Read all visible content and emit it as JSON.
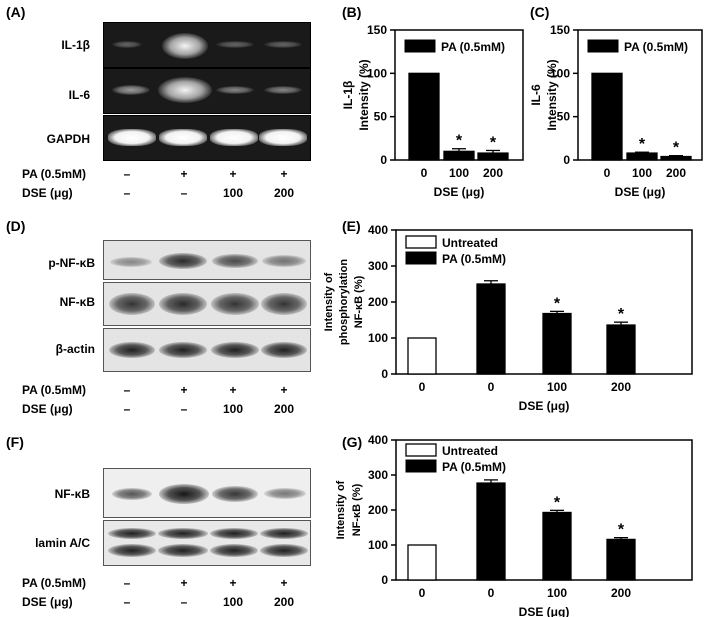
{
  "panels": {
    "A": "(A)",
    "B": "(B)",
    "C": "(C)",
    "D": "(D)",
    "E": "(E)",
    "F": "(F)",
    "G": "(G)"
  },
  "blotA": {
    "rows": [
      "IL-1β",
      "IL-6",
      "GAPDH"
    ]
  },
  "blotD": {
    "rows": [
      "p-NF-κB",
      "NF-κB",
      "β-actin"
    ]
  },
  "blotF": {
    "rows": [
      "NF-κB",
      "lamin A/C"
    ]
  },
  "conditions": {
    "pa_label": "PA (0.5mM)",
    "dse_label": "DSE (μg)",
    "pa": [
      "–",
      "+",
      "+",
      "+"
    ],
    "dse": [
      "–",
      "–",
      "100",
      "200"
    ]
  },
  "colors": {
    "filled": "#000000",
    "open": "#ffffff",
    "band_dark": "#1a1a1a"
  },
  "chart_data": [
    {
      "id": "B",
      "type": "bar",
      "categories": [
        "0",
        "100",
        "200"
      ],
      "series": [
        {
          "name": "PA (0.5mM)",
          "values": [
            100,
            10,
            8
          ],
          "errors": [
            0,
            3,
            3
          ]
        }
      ],
      "significance": [
        "",
        "*",
        "*"
      ],
      "ylabel_lines": [
        "IL-1β",
        "Intensity (%)"
      ],
      "xlabel": "DSE (μg)",
      "ylim": [
        0,
        150
      ],
      "yticks": [
        0,
        50,
        100,
        150
      ],
      "legend": [
        "PA (0.5mM)"
      ],
      "legend_position": "top"
    },
    {
      "id": "C",
      "type": "bar",
      "categories": [
        "0",
        "100",
        "200"
      ],
      "series": [
        {
          "name": "PA (0.5mM)",
          "values": [
            100,
            8,
            4
          ],
          "errors": [
            0,
            1,
            1
          ]
        }
      ],
      "significance": [
        "",
        "*",
        "*"
      ],
      "ylabel_lines": [
        "IL-6",
        "Intensity (%)"
      ],
      "xlabel": "DSE (μg)",
      "ylim": [
        0,
        150
      ],
      "yticks": [
        0,
        50,
        100,
        150
      ],
      "legend": [
        "PA (0.5mM)"
      ],
      "legend_position": "top"
    },
    {
      "id": "E",
      "type": "bar",
      "categories": [
        "0",
        "0",
        "100",
        "200"
      ],
      "bar_fill": [
        "open",
        "filled",
        "filled",
        "filled"
      ],
      "values": [
        100,
        250,
        168,
        136
      ],
      "errors": [
        0,
        9,
        6,
        8
      ],
      "significance": [
        "",
        "",
        "*",
        "*"
      ],
      "ylabel_lines": [
        "Intensity of",
        "phosphorylation",
        "NF-κB (%)"
      ],
      "xlabel": "DSE (μg)",
      "ylim": [
        0,
        400
      ],
      "yticks": [
        0,
        100,
        200,
        300,
        400
      ],
      "legend": [
        "Untreated",
        "PA (0.5mM)"
      ],
      "legend_position": "top-left"
    },
    {
      "id": "G",
      "type": "bar",
      "categories": [
        "0",
        "0",
        "100",
        "200"
      ],
      "bar_fill": [
        "open",
        "filled",
        "filled",
        "filled"
      ],
      "values": [
        100,
        277,
        193,
        116
      ],
      "errors": [
        0,
        9,
        6,
        5
      ],
      "significance": [
        "",
        "",
        "*",
        "*"
      ],
      "ylabel_lines": [
        "Intensity of",
        "NF-κB (%)"
      ],
      "xlabel": "DSE (μg)",
      "ylim": [
        0,
        400
      ],
      "yticks": [
        0,
        100,
        200,
        300,
        400
      ],
      "legend": [
        "Untreated",
        "PA (0.5mM)"
      ],
      "legend_position": "top-left"
    }
  ]
}
